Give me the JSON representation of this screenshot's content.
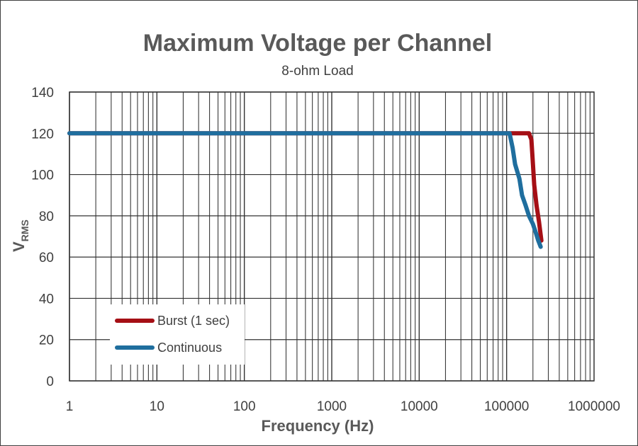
{
  "chart_data": {
    "type": "line",
    "title": "Maximum Voltage per Channel",
    "subtitle": "8-ohm Load",
    "xlabel": "Frequency (Hz)",
    "ylabel_main": "V",
    "ylabel_sub": "RMS",
    "x_scale": "log",
    "xlim": [
      1,
      1000000
    ],
    "ylim": [
      0,
      140
    ],
    "x_ticks": [
      "1",
      "10",
      "100",
      "1000",
      "10000",
      "100000",
      "1000000"
    ],
    "y_ticks": [
      "0",
      "20",
      "40",
      "60",
      "80",
      "100",
      "120",
      "140"
    ],
    "grid": true,
    "legend_position": "bottom-left",
    "series": [
      {
        "name": "Burst (1 sec)",
        "color": "#A50F15",
        "points": [
          [
            1,
            120
          ],
          [
            10,
            120
          ],
          [
            100,
            120
          ],
          [
            1000,
            120
          ],
          [
            10000,
            120
          ],
          [
            100000,
            120
          ],
          [
            180000,
            120
          ],
          [
            192000,
            117
          ],
          [
            200000,
            105
          ],
          [
            207000,
            95
          ],
          [
            220000,
            85
          ],
          [
            235000,
            77
          ],
          [
            250000,
            68
          ]
        ]
      },
      {
        "name": "Continuous",
        "color": "#1F6E9E",
        "points": [
          [
            1,
            120
          ],
          [
            10,
            120
          ],
          [
            100,
            120
          ],
          [
            1000,
            120
          ],
          [
            10000,
            120
          ],
          [
            100000,
            120
          ],
          [
            108000,
            120
          ],
          [
            117000,
            113
          ],
          [
            125000,
            105
          ],
          [
            140000,
            98
          ],
          [
            150000,
            90
          ],
          [
            165000,
            85
          ],
          [
            180000,
            80
          ],
          [
            200000,
            76
          ],
          [
            215000,
            72
          ],
          [
            230000,
            68
          ],
          [
            245000,
            65
          ]
        ]
      }
    ]
  }
}
